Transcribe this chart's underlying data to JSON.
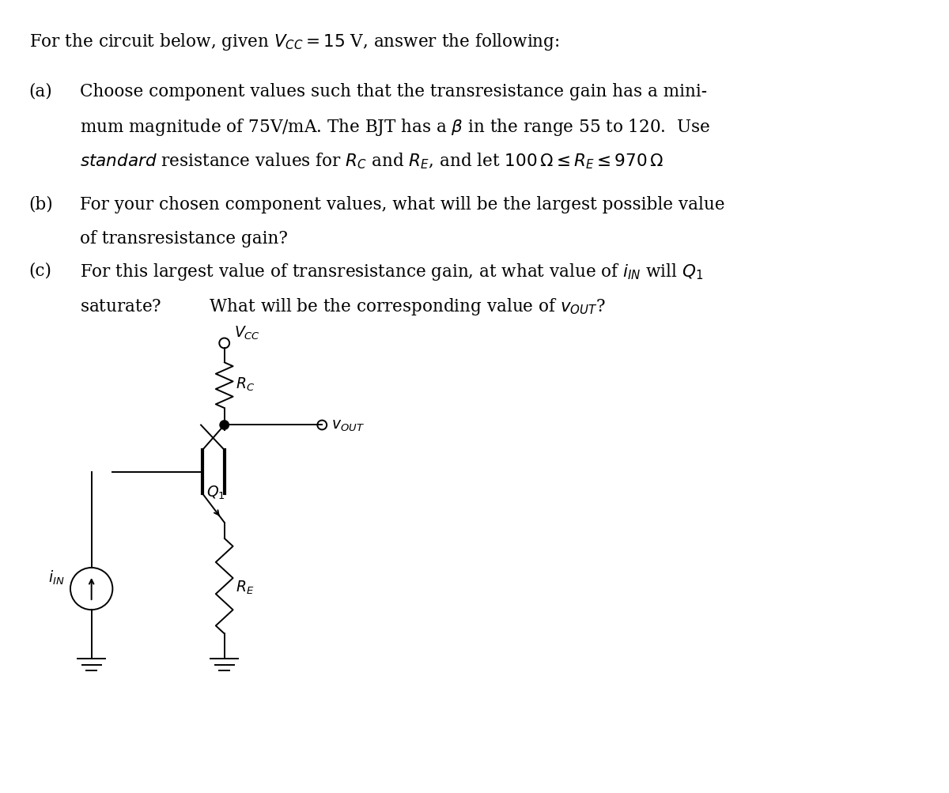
{
  "bg_color": "#ffffff",
  "text_color": "#000000",
  "fig_width": 12.0,
  "fig_height": 10.04,
  "lw": 1.4,
  "fs_main": 15.5,
  "fs_circuit": 13.5,
  "title": "For the circuit below, given $V_{CC} = 15$ V, answer the following:",
  "a_line1": "Choose component values such that the transresistance gain has a mini-",
  "a_line2": "mum magnitude of 75V/mA. The BJT has a $\\beta$ in the range 55 to 120.  Use",
  "a_line3": "$\\mathit{standard}$ resistance values for $R_C$ and $R_E$, and let $100\\,\\Omega \\leq R_E \\leq 970\\,\\Omega$",
  "b_line1": "For your chosen component values, what will be the largest possible value",
  "b_line2": "of transresistance gain?",
  "c_line1": "For this largest value of transresistance gain, at what value of $i_{IN}$ will $Q_1$",
  "c_line2": "saturate?         What will be the corresponding value of $v_{OUT}$?"
}
